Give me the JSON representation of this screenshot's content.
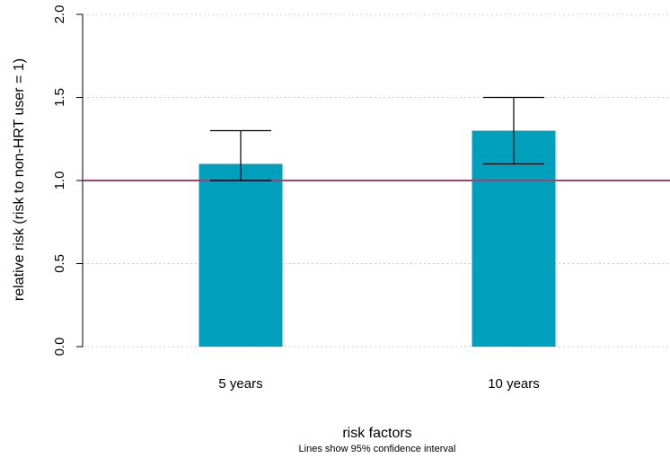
{
  "chart_data": {
    "type": "bar",
    "categories": [
      "5 years",
      "10 years"
    ],
    "values": [
      1.1,
      1.3
    ],
    "ci_lower": [
      1.0,
      1.1
    ],
    "ci_upper": [
      1.3,
      1.5
    ],
    "reference_line": 1.0,
    "xlabel": "risk factors",
    "ylabel": "relative risk (risk to non-HRT user = 1)",
    "caption": "Lines show 95% confidence interval",
    "ylim": [
      0,
      2
    ],
    "yticks": [
      "0.0",
      "0.5",
      "1.0",
      "1.5",
      "2.0"
    ],
    "grid": "horizontal dotted",
    "colors": {
      "bar": "#009fbd",
      "reference_line": "#a3426a",
      "error_bar": "#000000",
      "grid": "#cccccc"
    }
  }
}
